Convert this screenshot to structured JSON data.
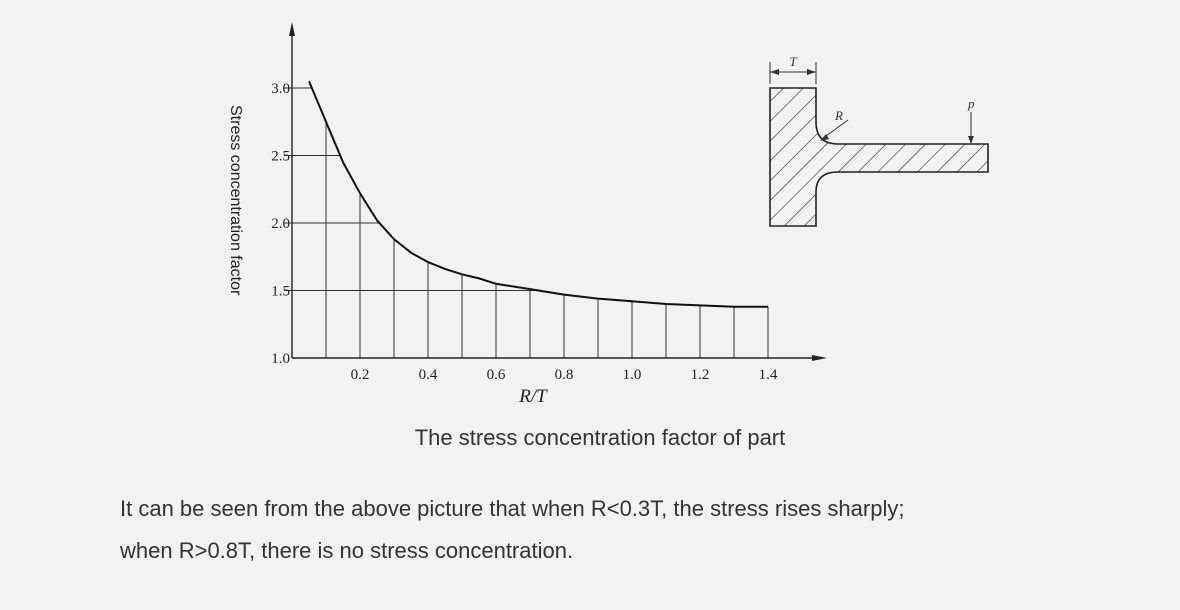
{
  "chart_data": {
    "type": "line",
    "xlabel": "R/T",
    "ylabel": "Stress concentration factor",
    "xlim": [
      0,
      1.4
    ],
    "ylim": [
      1.0,
      3.0
    ],
    "x_ticks": [
      "0.2",
      "0.4",
      "0.6",
      "0.8",
      "1.0",
      "1.2",
      "1.4"
    ],
    "y_ticks": [
      "1.0",
      "1.5",
      "2.0",
      "2.5",
      "3.0"
    ],
    "grid": true,
    "series": [
      {
        "x": [
          0.05,
          0.1,
          0.15,
          0.2,
          0.25,
          0.3,
          0.35,
          0.4,
          0.45,
          0.5,
          0.55,
          0.6,
          0.7,
          0.8,
          0.9,
          1.0,
          1.1,
          1.2,
          1.3,
          1.4
        ],
        "y": [
          3.05,
          2.75,
          2.45,
          2.22,
          2.02,
          1.88,
          1.78,
          1.71,
          1.66,
          1.62,
          1.59,
          1.55,
          1.51,
          1.47,
          1.44,
          1.42,
          1.4,
          1.39,
          1.38,
          1.38
        ]
      }
    ]
  },
  "diagram": {
    "labels": {
      "thickness": "T",
      "radius": "R",
      "load": "p"
    }
  },
  "caption": "The stress concentration factor of part",
  "paragraph": {
    "line1": "It can be seen from the above picture that when R<0.3T, the stress rises sharply;",
    "line2": "when R>0.8T, there is no stress concentration."
  }
}
